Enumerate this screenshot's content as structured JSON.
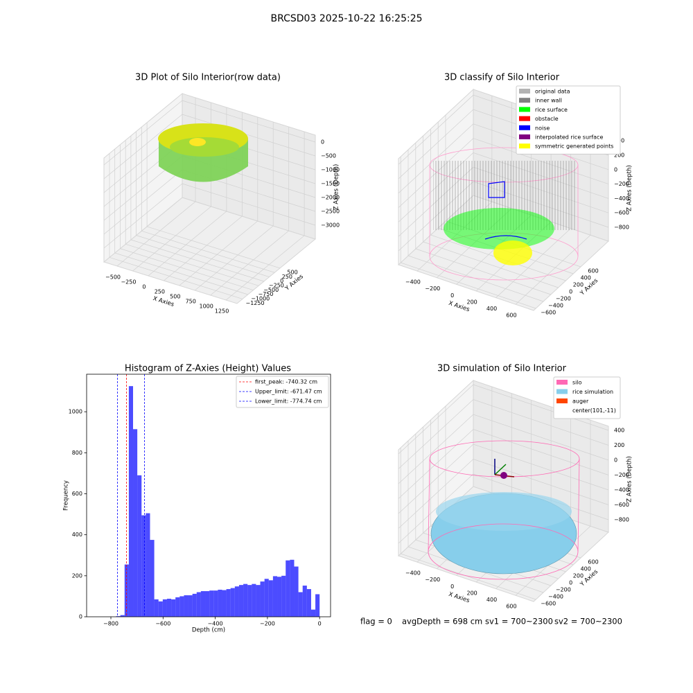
{
  "figure": {
    "title": "BRCSD03 2025-10-22 16:25:25",
    "footer": [
      "flag = 0",
      "avgDepth = 698 cm",
      "sv1 = 700~2300",
      "sv2 = 700~2300"
    ]
  },
  "chart_data": [
    {
      "type": "scatter3d",
      "title": "3D Plot of Silo Interior(row data)",
      "xlabel": "X Axies",
      "ylabel": "Y Axies",
      "zlabel": "Z Axies (Depth)",
      "xlim": [
        -712,
        1427
      ],
      "ylim": [
        -1510,
        2150
      ],
      "zlim": [
        -3500,
        250
      ],
      "xticks": [
        {
          "value": -500,
          "label": "−500"
        },
        {
          "value": -250,
          "label": "−250"
        },
        0,
        250,
        500,
        750,
        1000,
        1250
      ],
      "yticks": [
        {
          "value": -1250,
          "label": "−1250"
        },
        {
          "value": -1000,
          "label": "−1000"
        },
        {
          "value": -750,
          "label": "−750"
        },
        {
          "value": -500,
          "label": "−500"
        },
        {
          "value": -250,
          "label": "−250"
        },
        0,
        250,
        500
      ],
      "zticks": [
        {
          "value": -3000,
          "label": "−3000"
        },
        {
          "value": -2500,
          "label": "−2500"
        },
        {
          "value": -2000,
          "label": "−2000"
        },
        {
          "value": -1500,
          "label": "−1500"
        },
        {
          "value": -1000,
          "label": "−1000"
        },
        {
          "value": -500,
          "label": "−500"
        },
        0
      ],
      "grid": true
    },
    {
      "type": "scatter3d",
      "title": "3D classify of Silo Interior",
      "xlabel": "X Axies",
      "ylabel": "Y Axies",
      "zlabel": "Z Axies (Depth)",
      "xlim": [
        -589,
        783
      ],
      "ylim": [
        -660,
        1340
      ],
      "zlim": [
        -992,
        479
      ],
      "xticks": [
        {
          "value": -400,
          "label": "−400"
        },
        {
          "value": -200,
          "label": "−200"
        },
        0,
        200,
        400,
        600
      ],
      "yticks": [
        {
          "value": -600,
          "label": "−600"
        },
        {
          "value": -400,
          "label": "−400"
        },
        {
          "value": -200,
          "label": "−200"
        },
        0,
        200,
        400,
        600
      ],
      "zticks": [
        {
          "value": -800,
          "label": "−800"
        },
        {
          "value": -600,
          "label": "−600"
        },
        {
          "value": -400,
          "label": "−400"
        },
        {
          "value": -200,
          "label": "−200"
        },
        0,
        200,
        400
      ],
      "grid": true,
      "legend_loc": "upper right",
      "legend": [
        {
          "name": "original data",
          "color": "#b3b3b3"
        },
        {
          "name": "inner wall",
          "color": "#808080"
        },
        {
          "name": "rice surface",
          "color": "#00ff00"
        },
        {
          "name": "obstacle",
          "color": "#ff0000"
        },
        {
          "name": "noise",
          "color": "#0000ff"
        },
        {
          "name": "interpolated rice surface",
          "color": "#800080"
        },
        {
          "name": "symmetric generated points",
          "color": "#ffff00"
        }
      ]
    },
    {
      "type": "histogram",
      "title": "Histogram of Z-Axies (Height) Values",
      "xlabel": "Depth (cm)",
      "ylabel": "Frequency",
      "color": "#0000ff",
      "alpha": 0.7,
      "xlim": [
        -893,
        42
      ],
      "ylim": [
        0,
        1183
      ],
      "xticks": [
        {
          "value": -800,
          "label": "−800"
        },
        {
          "value": -600,
          "label": "−600"
        },
        {
          "value": -400,
          "label": "−400"
        },
        {
          "value": -200,
          "label": "−200"
        },
        0
      ],
      "yticks": [
        0,
        200,
        400,
        600,
        800,
        1000
      ],
      "bins": [
        -780,
        -763.75,
        -747.5,
        -731.25,
        -715,
        -698.75,
        -682.5,
        -666.25,
        -650,
        -633.75,
        -617.5,
        -601.25,
        -585,
        -568.75,
        -552.5,
        -536.25,
        -520,
        -503.75,
        -487.5,
        -471.25,
        -455,
        -438.75,
        -422.5,
        -406.25,
        -390,
        -373.75,
        -357.5,
        -341.25,
        -325,
        -308.75,
        -292.5,
        -276.25,
        -260,
        -243.75,
        -227.5,
        -211.25,
        -195,
        -178.75,
        -162.5,
        -146.25,
        -130,
        -113.75,
        -97.5,
        -81.25,
        -65,
        -48.75,
        -32.5,
        -16.25,
        0
      ],
      "counts": [
        3,
        8,
        255,
        1125,
        915,
        690,
        495,
        505,
        375,
        85,
        75,
        85,
        88,
        85,
        95,
        100,
        105,
        105,
        112,
        120,
        125,
        125,
        128,
        128,
        132,
        130,
        135,
        140,
        148,
        155,
        160,
        155,
        160,
        155,
        172,
        185,
        178,
        198,
        195,
        200,
        275,
        278,
        245,
        120,
        152,
        135,
        35,
        110
      ],
      "lines": [
        {
          "name": "first_peak: -740.32 cm",
          "value": -740.32,
          "color": "#ff0000"
        },
        {
          "name": "Upper_limit: -671.47 cm",
          "value": -671.47,
          "color": "#0000ff"
        },
        {
          "name": "Lower_limit: -774.74 cm",
          "value": -774.74,
          "color": "#0000ff"
        }
      ],
      "legend_loc": "upper right"
    },
    {
      "type": "surface3d",
      "title": "3D simulation of Silo Interior",
      "xlabel": "X Axies",
      "ylabel": "Y Axies",
      "zlabel": "Z Axies (Depth)",
      "xlim": [
        -589,
        783
      ],
      "ylim": [
        -660,
        1340
      ],
      "zlim": [
        -967,
        456
      ],
      "xticks": [
        {
          "value": -400,
          "label": "−400"
        },
        {
          "value": -200,
          "label": "−200"
        },
        0,
        200,
        400,
        600
      ],
      "yticks": [
        {
          "value": -600,
          "label": "−600"
        },
        {
          "value": -400,
          "label": "−400"
        },
        {
          "value": -200,
          "label": "−200"
        },
        0,
        200,
        400,
        600
      ],
      "zticks": [
        {
          "value": -800,
          "label": "−800"
        },
        {
          "value": -600,
          "label": "−600"
        },
        {
          "value": -400,
          "label": "−400"
        },
        {
          "value": -200,
          "label": "−200"
        },
        0,
        200,
        400
      ],
      "grid": true,
      "legend_loc": "upper right",
      "legend": [
        {
          "name": "silo",
          "color": "#ff69b4"
        },
        {
          "name": "rice simulation",
          "color": "#87ceeb"
        },
        {
          "name": "auger",
          "color": "#ff4500"
        },
        {
          "name": "center(101,-11)",
          "color": "#ffffff"
        }
      ]
    }
  ]
}
